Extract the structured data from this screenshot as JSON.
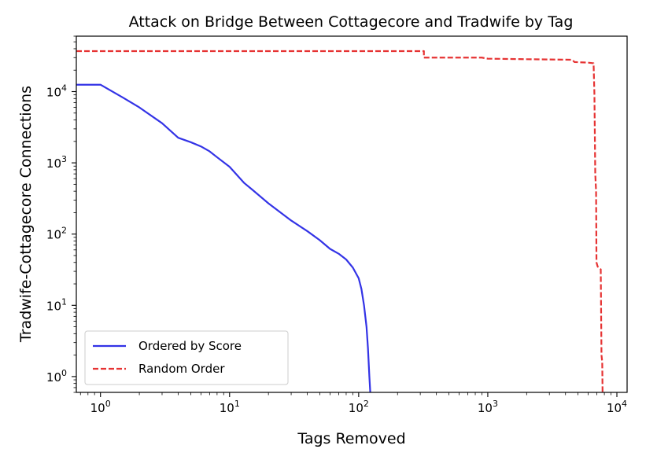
{
  "chart_data": {
    "type": "line",
    "title": "Attack on Bridge Between Cottagecore and Tradwife by Tag",
    "xlabel": "Tags Removed",
    "ylabel": "Tradwife-Cottagecore Connections",
    "xscale": "log",
    "yscale": "log",
    "xlim": [
      0.65,
      12000
    ],
    "ylim": [
      0.6,
      60000
    ],
    "grid": false,
    "legend_position": "lower-left",
    "x_ticks": [
      {
        "value": 1,
        "base": "10",
        "exp": "0"
      },
      {
        "value": 10,
        "base": "10",
        "exp": "1"
      },
      {
        "value": 100,
        "base": "10",
        "exp": "2"
      },
      {
        "value": 1000,
        "base": "10",
        "exp": "3"
      },
      {
        "value": 10000,
        "base": "10",
        "exp": "4"
      }
    ],
    "y_ticks": [
      {
        "value": 1,
        "base": "10",
        "exp": "0"
      },
      {
        "value": 10,
        "base": "10",
        "exp": "1"
      },
      {
        "value": 100,
        "base": "10",
        "exp": "2"
      },
      {
        "value": 1000,
        "base": "10",
        "exp": "3"
      },
      {
        "value": 10000,
        "base": "10",
        "exp": "4"
      }
    ],
    "series": [
      {
        "name": "Ordered by Score",
        "color": "#3333e6",
        "style": "solid",
        "points": [
          [
            0.65,
            12500
          ],
          [
            1,
            12500
          ],
          [
            1.5,
            8200
          ],
          [
            2,
            6000
          ],
          [
            3,
            3600
          ],
          [
            4,
            2250
          ],
          [
            5,
            1950
          ],
          [
            6,
            1700
          ],
          [
            7,
            1450
          ],
          [
            8,
            1200
          ],
          [
            10,
            880
          ],
          [
            13,
            520
          ],
          [
            15,
            420
          ],
          [
            20,
            270
          ],
          [
            30,
            155
          ],
          [
            40,
            110
          ],
          [
            50,
            82
          ],
          [
            60,
            62
          ],
          [
            70,
            53
          ],
          [
            80,
            44
          ],
          [
            90,
            34
          ],
          [
            100,
            24
          ],
          [
            105,
            17
          ],
          [
            110,
            10
          ],
          [
            115,
            5
          ],
          [
            118,
            2.5
          ],
          [
            121,
            1
          ],
          [
            123,
            0.6
          ]
        ]
      },
      {
        "name": "Random Order",
        "color": "#e63333",
        "style": "dashed",
        "points": [
          [
            0.65,
            37000
          ],
          [
            320,
            37000
          ],
          [
            320,
            30000
          ],
          [
            900,
            30000
          ],
          [
            1000,
            29000
          ],
          [
            2000,
            28500
          ],
          [
            4500,
            28000
          ],
          [
            4700,
            26000
          ],
          [
            6000,
            25500
          ],
          [
            6600,
            25000
          ],
          [
            6700,
            9000
          ],
          [
            6800,
            700
          ],
          [
            6900,
            400
          ],
          [
            6950,
            40
          ],
          [
            7100,
            35
          ],
          [
            7500,
            32
          ],
          [
            7600,
            2
          ],
          [
            7700,
            1.6
          ],
          [
            7750,
            0.6
          ]
        ]
      }
    ]
  }
}
